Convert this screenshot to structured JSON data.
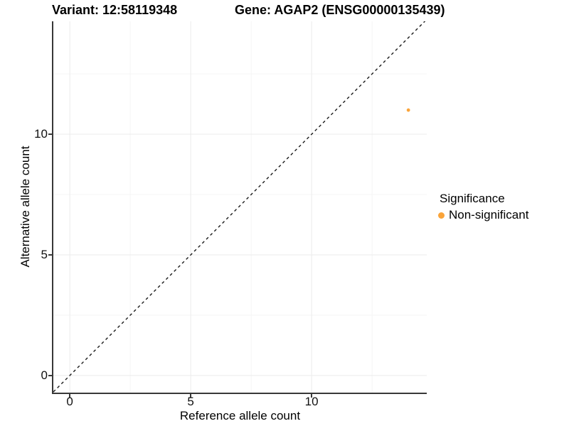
{
  "colors": {
    "accent_orange": "#FAA43A",
    "axis_line": "#383838",
    "grid_major": "#EBEBEB",
    "grid_minor": "#F5F5F5",
    "reference_line": "#1A1A1A",
    "background": "#FFFFFF"
  },
  "chart_data": {
    "type": "scatter",
    "title_left": "Variant: 12:58119348",
    "title_right": "Gene: AGAP2 (ENSG00000135439)",
    "xlabel": "Reference allele count",
    "ylabel": "Alternative allele count",
    "xlim": [
      -0.68,
      14.76
    ],
    "ylim": [
      -0.71,
      14.68
    ],
    "x_ticks": [
      0,
      5,
      10
    ],
    "y_ticks": [
      0,
      5,
      10
    ],
    "x_minor_ticks": [
      2.5,
      7.5,
      12.5
    ],
    "y_minor_ticks": [
      2.5,
      7.5,
      12.5
    ],
    "grid": "major and minor gridlines, light gray on white",
    "reference_line": {
      "type": "identity y=x",
      "style": "dashed",
      "color": "#1A1A1A"
    },
    "points": [
      {
        "x": 14,
        "y": 11,
        "series": "Non-significant",
        "color": "#FAA43A",
        "radius": 2.4
      }
    ],
    "legend": {
      "title": "Significance",
      "position": "right",
      "entries": [
        {
          "label": "Non-significant",
          "color": "#FAA43A"
        }
      ]
    }
  }
}
